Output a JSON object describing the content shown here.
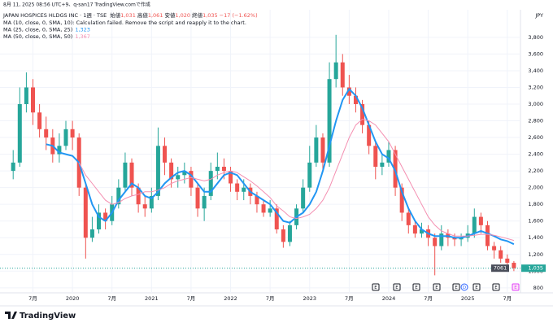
{
  "header": "8月 11, 2025 08:56 UTC+9、q-san17 TradingView.comで作成",
  "brand": "TradingView",
  "chart_data": {
    "type": "candlestick",
    "symbol": "JAPAN HOSPICES HLDGS INC · 1週 · TSE",
    "readout": [
      {
        "name": "始値",
        "value": "1,031"
      },
      {
        "name": "高値",
        "value": "1,061"
      },
      {
        "name": "安値",
        "value": "1,020"
      },
      {
        "name": "終値",
        "value": "1,035"
      }
    ],
    "change": "−17 (−1.62%)",
    "notes": [
      "MA (10, close, 0, SMA, 10): Calculation failed. Remove the script and reapply it to the chart."
    ],
    "currency": "JPY",
    "ticker_code": "7061",
    "last_price": {
      "value": 1035,
      "label": "1,035"
    },
    "up_color": "#26a69a",
    "down_color": "#ef5350",
    "open": [
      2200,
      2300,
      3000,
      3200,
      2900,
      2700,
      2600,
      2400,
      2500,
      2700,
      2600,
      2000,
      1400,
      1500,
      1700,
      1600,
      1800,
      2000,
      2300,
      2000,
      1800,
      1750,
      1900,
      2500,
      2300,
      2100,
      2150,
      2200,
      2000,
      1750,
      1900,
      2200,
      2250,
      2200,
      2050,
      1950,
      2000,
      1900,
      1800,
      1700,
      1750,
      1500,
      1350,
      1550,
      1750,
      2000,
      2300,
      2600,
      2300,
      3300,
      3500,
      3200,
      3100,
      3000,
      2750,
      2500,
      2250,
      2300,
      2450,
      2000,
      1700,
      1550,
      1450,
      1500,
      1400,
      1300,
      1450,
      1400,
      1380,
      1400,
      1450,
      1650,
      1550,
      1300,
      1250,
      1150,
      1100
    ],
    "high": [
      2450,
      3200,
      3380,
      3300,
      3000,
      2850,
      2700,
      2650,
      2800,
      2800,
      2650,
      2050,
      1650,
      1800,
      1750,
      1900,
      2100,
      2420,
      2350,
      2050,
      1900,
      2000,
      2720,
      2600,
      2350,
      2250,
      2300,
      2250,
      2050,
      2000,
      2300,
      2420,
      2350,
      2250,
      2100,
      2100,
      2050,
      1950,
      1850,
      1850,
      1800,
      1550,
      1600,
      1800,
      2100,
      2500,
      2750,
      2650,
      3500,
      3830,
      3600,
      3350,
      3200,
      3050,
      2800,
      2550,
      2400,
      2550,
      2500,
      2050,
      1750,
      1600,
      1580,
      1550,
      1450,
      1550,
      1500,
      1450,
      1450,
      1550,
      1750,
      1700,
      1600,
      1350,
      1300,
      1200,
      1120
    ],
    "low": [
      2100,
      2250,
      2900,
      2750,
      2600,
      2450,
      2300,
      2300,
      2450,
      2450,
      1900,
      1150,
      1350,
      1450,
      1500,
      1550,
      1750,
      1950,
      1900,
      1700,
      1650,
      1700,
      1850,
      2150,
      2000,
      2000,
      2050,
      1900,
      1650,
      1600,
      1850,
      2100,
      2100,
      1950,
      1850,
      1850,
      1800,
      1700,
      1650,
      1650,
      1450,
      1280,
      1300,
      1500,
      1700,
      1950,
      2250,
      2200,
      2250,
      3200,
      3100,
      3000,
      2900,
      2650,
      2400,
      2100,
      2150,
      2250,
      1900,
      1600,
      1450,
      1400,
      1400,
      1300,
      950,
      1250,
      1300,
      1300,
      1300,
      1350,
      1400,
      1450,
      1250,
      1150,
      1100,
      1050,
      1000
    ],
    "close": [
      2300,
      3000,
      3200,
      2900,
      2700,
      2600,
      2400,
      2500,
      2700,
      2600,
      2000,
      1400,
      1500,
      1700,
      1600,
      1800,
      2000,
      2300,
      2000,
      1800,
      1750,
      1900,
      2500,
      2300,
      2100,
      2150,
      2200,
      2000,
      1750,
      1900,
      2200,
      2250,
      2200,
      2050,
      1950,
      2000,
      1900,
      1800,
      1700,
      1750,
      1500,
      1350,
      1550,
      1750,
      2000,
      2300,
      2600,
      2300,
      3300,
      3500,
      3200,
      3100,
      3000,
      2750,
      2500,
      2250,
      2300,
      2450,
      2000,
      1700,
      1550,
      1450,
      1500,
      1400,
      1300,
      1450,
      1400,
      1380,
      1400,
      1450,
      1650,
      1550,
      1300,
      1250,
      1150,
      1100,
      1035
    ],
    "series": [
      {
        "name": "MA (25, close, 0, SMA, 25)",
        "color": "#2196f3",
        "last_label": "1,323",
        "values": [
          null,
          null,
          null,
          null,
          null,
          2520,
          2500,
          2420,
          2400,
          2380,
          2300,
          2050,
          1800,
          1650,
          1600,
          1700,
          1850,
          1950,
          2050,
          2000,
          1900,
          1870,
          1950,
          2050,
          2120,
          2180,
          2200,
          2150,
          2050,
          1950,
          1950,
          2050,
          2150,
          2180,
          2150,
          2050,
          1950,
          1900,
          1850,
          1800,
          1700,
          1600,
          1580,
          1650,
          1700,
          1800,
          1950,
          2200,
          2500,
          2800,
          3050,
          3180,
          3100,
          2950,
          2750,
          2550,
          2400,
          2350,
          2200,
          1950,
          1750,
          1600,
          1500,
          1450,
          1420,
          1420,
          1420,
          1400,
          1400,
          1420,
          1450,
          1480,
          1450,
          1420,
          1380,
          1360,
          1323
        ]
      },
      {
        "name": "MA (50, close, 0, SMA, 50)",
        "color": "#f48fb1",
        "last_label": "1,367",
        "values": [
          null,
          null,
          null,
          null,
          null,
          null,
          null,
          null,
          null,
          null,
          2300,
          2150,
          2050,
          1950,
          1850,
          1800,
          1820,
          1870,
          1900,
          1920,
          1950,
          1950,
          1970,
          2000,
          2050,
          2080,
          2100,
          2120,
          2100,
          2080,
          2100,
          2150,
          2180,
          2200,
          2180,
          2130,
          2080,
          2020,
          1950,
          1880,
          1780,
          1720,
          1650,
          1630,
          1650,
          1680,
          1750,
          1850,
          2000,
          2200,
          2400,
          2600,
          2750,
          2820,
          2800,
          2750,
          2650,
          2550,
          2400,
          2250,
          2100,
          1950,
          1800,
          1650,
          1550,
          1480,
          1450,
          1420,
          1420,
          1420,
          1430,
          1440,
          1440,
          1430,
          1410,
          1390,
          1367
        ]
      }
    ],
    "xlim": [
      -2,
      77
    ],
    "xticks": [
      {
        "value": 3,
        "label": "7月"
      },
      {
        "value": 9,
        "label": "2020"
      },
      {
        "value": 15,
        "label": "7月"
      },
      {
        "value": 21,
        "label": "2021"
      },
      {
        "value": 27,
        "label": "7月"
      },
      {
        "value": 33,
        "label": "2022"
      },
      {
        "value": 39,
        "label": "7月"
      },
      {
        "value": 45,
        "label": "2023"
      },
      {
        "value": 51,
        "label": "7月"
      },
      {
        "value": 57,
        "label": "2024"
      },
      {
        "value": 63,
        "label": "7月"
      },
      {
        "value": 69,
        "label": "2025"
      },
      {
        "value": 75,
        "label": "7月"
      }
    ],
    "ylim": [
      740,
      4130
    ],
    "yticks": [
      800,
      {
        "value": 1000,
        "label": "1,000"
      },
      {
        "value": 1200,
        "label": "1,200"
      },
      {
        "value": 1400,
        "label": "1,400"
      },
      {
        "value": 1600,
        "label": "1,600"
      },
      {
        "value": 1800,
        "label": "1,800"
      },
      {
        "value": 2000,
        "label": "2,000"
      },
      {
        "value": 2200,
        "label": "2,200"
      },
      {
        "value": 2400,
        "label": "2,400"
      },
      {
        "value": 2600,
        "label": "2,600"
      },
      {
        "value": 2800,
        "label": "2,800"
      },
      {
        "value": 3000,
        "label": "3,000"
      },
      {
        "value": 3200,
        "label": "3,200"
      },
      {
        "value": 3400,
        "label": "3,400"
      },
      {
        "value": 3600,
        "label": "3,600"
      },
      {
        "value": 3800,
        "label": "3,800"
      }
    ],
    "grid": true,
    "events": [
      "E",
      "E",
      "E",
      "E",
      "E",
      "D",
      "E",
      "E",
      "E"
    ]
  }
}
